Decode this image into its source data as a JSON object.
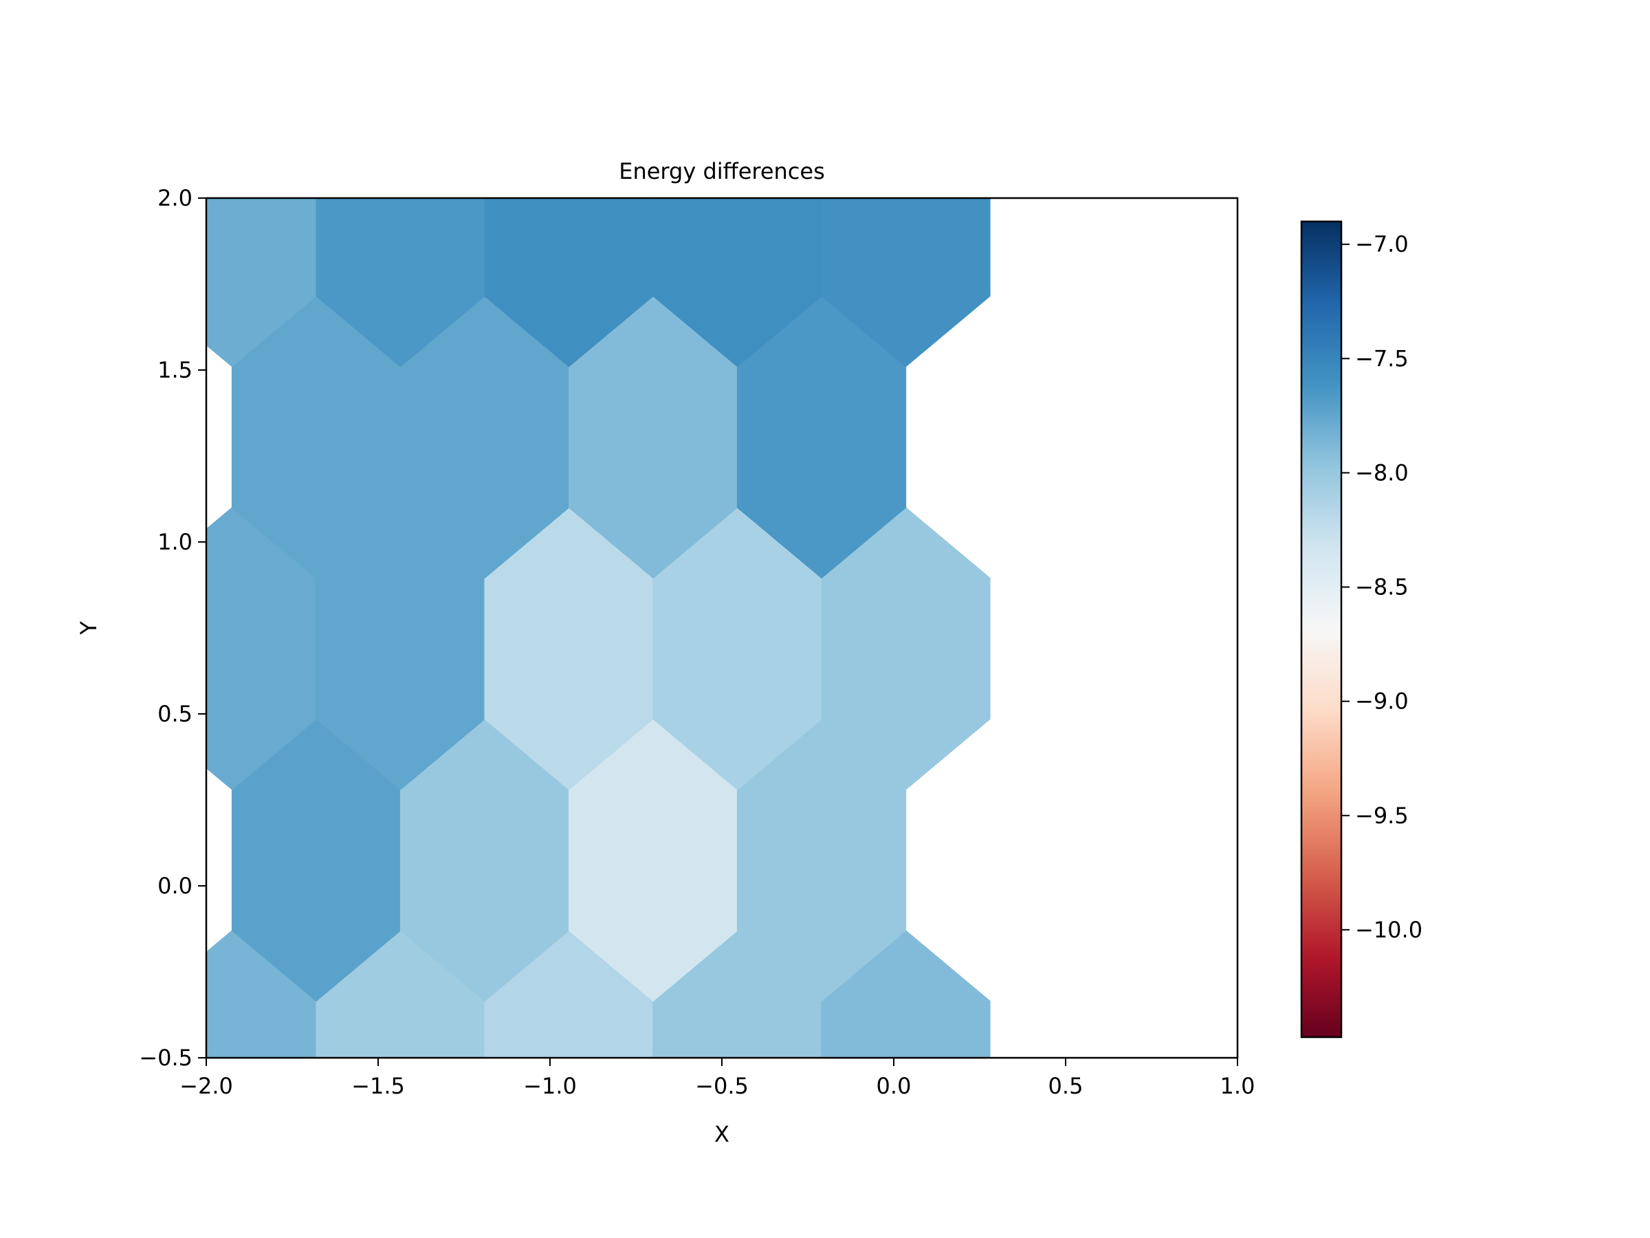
{
  "chart_data": {
    "type": "heatmap",
    "subtype": "hexbin",
    "title": "Energy differences",
    "xlabel": "X",
    "ylabel": "Y",
    "xlim": [
      -2.0,
      1.0
    ],
    "ylim": [
      -0.5,
      2.0
    ],
    "x_ticks": [
      -2.0,
      -1.5,
      -1.0,
      -0.5,
      0.0,
      0.5,
      1.0
    ],
    "x_tick_labels": [
      "−2.0",
      "−1.5",
      "−1.0",
      "−0.5",
      "0.0",
      "0.5",
      "1.0"
    ],
    "y_ticks": [
      -0.5,
      0.0,
      0.5,
      1.0,
      1.5,
      2.0
    ],
    "y_tick_labels": [
      "−0.5",
      "0.0",
      "0.5",
      "1.0",
      "1.5",
      "2.0"
    ],
    "hexbin": {
      "x0": -1.925,
      "y0": -0.54,
      "dx": 0.49,
      "dy": 0.615,
      "rows": [
        {
          "index": 0,
          "values": [
            -7.85,
            -8.05,
            -8.15,
            -8.0,
            -7.9
          ]
        },
        {
          "index": 1,
          "values": [
            -7.72,
            -8.0,
            -8.35,
            -8.0
          ]
        },
        {
          "index": 2,
          "values": [
            -7.78,
            -7.75,
            -8.2,
            -8.1,
            -8.0
          ]
        },
        {
          "index": 3,
          "values": [
            -7.75,
            -7.75,
            -7.9,
            -7.65
          ]
        },
        {
          "index": 4,
          "values": [
            -7.8,
            -7.65,
            -7.58,
            -7.58,
            -7.6
          ]
        }
      ]
    },
    "colorbar": {
      "cmap": "RdBu",
      "vmin": -10.47,
      "vmax": -6.9,
      "ticks": [
        -7.0,
        -7.5,
        -8.0,
        -8.5,
        -9.0,
        -9.5,
        -10.0
      ],
      "tick_labels": [
        "−7.0",
        "−7.5",
        "−8.0",
        "−8.5",
        "−9.0",
        "−9.5",
        "−10.0"
      ],
      "stops": [
        "#67001f",
        "#b2182b",
        "#d6604d",
        "#f4a582",
        "#fddbc7",
        "#f7f7f7",
        "#d1e5f0",
        "#92c5de",
        "#4393c3",
        "#2166ac",
        "#053061"
      ]
    }
  }
}
